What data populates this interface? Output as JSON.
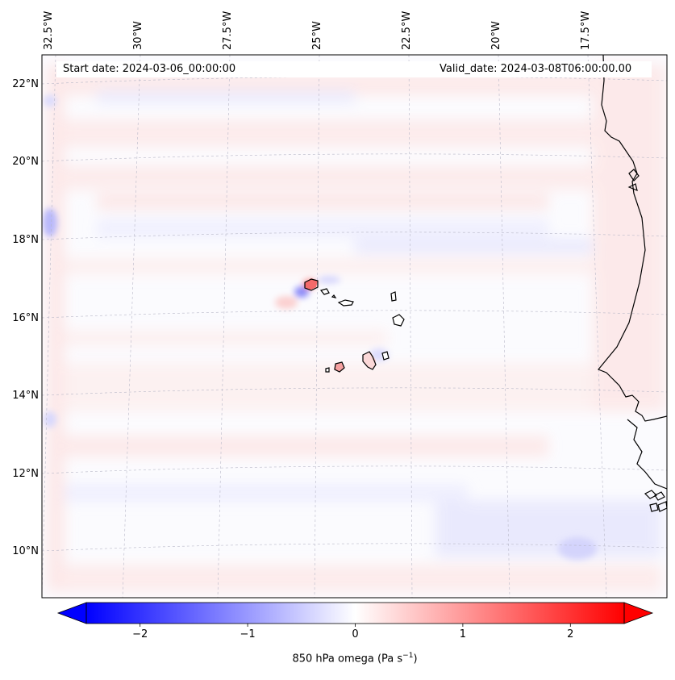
{
  "map": {
    "start_date_label": "Start date: 2024-03-06_00:00:00",
    "valid_date_label": "Valid_date: 2024-03-08T06:00:00.00",
    "lon_labels": [
      "32.5°W",
      "30°W",
      "27.5°W",
      "25°W",
      "22.5°W",
      "20°W",
      "17.5°W"
    ],
    "lat_labels": [
      "22°N",
      "20°N",
      "18°N",
      "16°N",
      "14°N",
      "12°N",
      "10°N"
    ],
    "extent": {
      "lon_min": -33.0,
      "lon_max": -16.0,
      "lat_min": 8.9,
      "lat_max": 22.8
    },
    "colors": {
      "positive": "#ff0000",
      "negative": "#0000ff",
      "zero": "#ffffff",
      "coast": "#000000",
      "grid": "#b0b0c0"
    }
  },
  "colorbar": {
    "title": "850 hPa omega (Pa s",
    "title_sup": "−1",
    "title_end": ")",
    "tick_labels": [
      "−2",
      "−1",
      "0",
      "1",
      "2"
    ],
    "tick_values": [
      -2,
      -1,
      0,
      1,
      2
    ],
    "range": [
      -2.5,
      2.5
    ],
    "colormap": "bwr"
  }
}
